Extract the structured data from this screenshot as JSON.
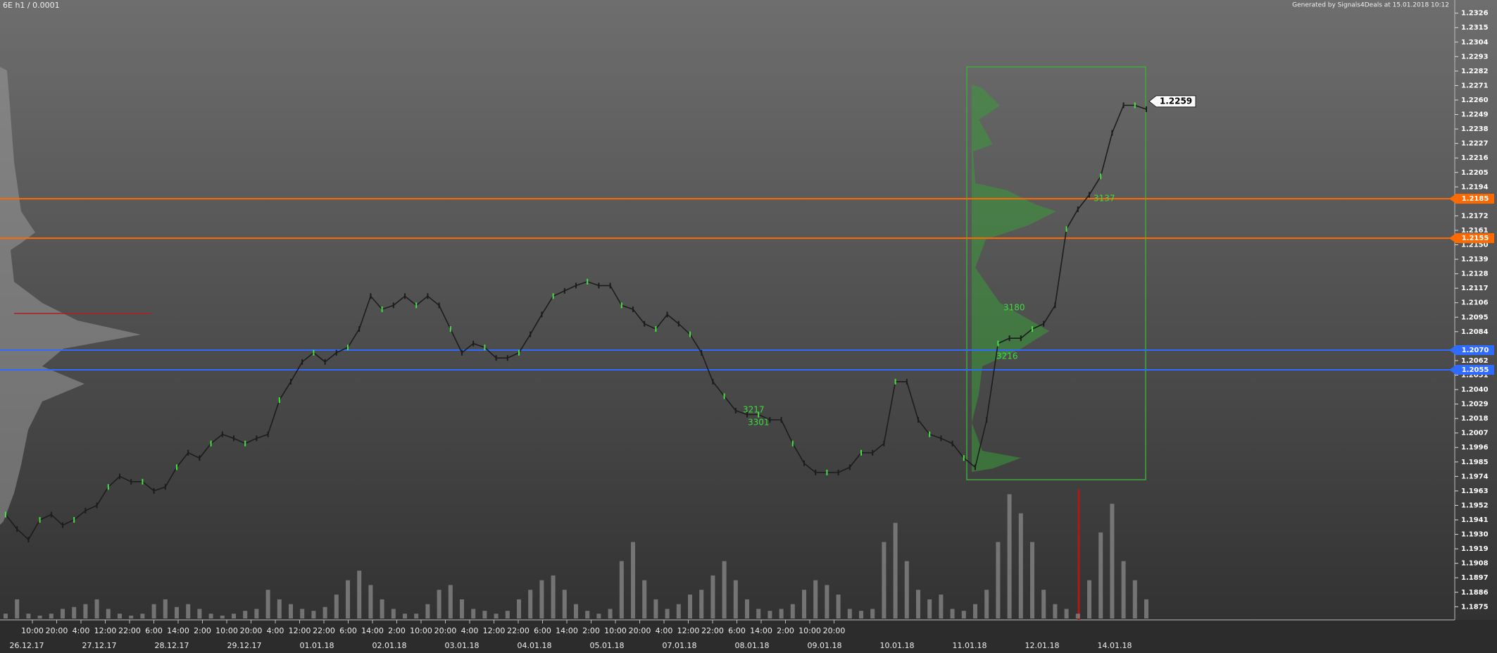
{
  "chart_data": {
    "type": "line",
    "title": "6E h1 / 0.0001",
    "subtitle": "Generated by Signals4Deals at 15.01.2018 10:12",
    "ylim": [
      1.1865,
      1.2336
    ],
    "yticks": [
      1.2326,
      1.2315,
      1.2304,
      1.2293,
      1.2282,
      1.2271,
      {
        "value": 1.226,
        "label": "1.2260"
      },
      1.2249,
      1.2238,
      1.2227,
      1.2216,
      1.2205,
      1.2194,
      1.2172,
      1.2161,
      {
        "value": 1.215,
        "label": "1.2150"
      },
      1.2139,
      1.2128,
      1.2117,
      1.2106,
      1.2095,
      1.2084,
      1.2062,
      1.2051,
      {
        "value": 1.204,
        "label": "1.2040"
      },
      1.2029,
      1.2018,
      1.2007,
      1.1996,
      1.1985,
      1.1974,
      1.1963,
      1.1952,
      1.1941,
      {
        "value": 1.193,
        "label": "1.1930"
      },
      1.1919,
      1.1908,
      1.1897,
      1.1886,
      1.1875
    ],
    "time_labels": [
      "10:00",
      "20:00",
      "4:00",
      "12:00",
      "22:00",
      "6:00",
      "14:00",
      "2:00",
      "10:00",
      "20:00",
      "4:00",
      "12:00",
      "22:00",
      "6:00",
      "14:00",
      "2:00",
      "10:00",
      "20:00",
      "4:00",
      "12:00",
      "22:00",
      "6:00",
      "14:00",
      "2:00",
      "10:00",
      "20:00",
      "4:00",
      "12:00",
      "22:00",
      "6:00",
      "14:00",
      "2:00",
      "10:00",
      "20:00"
    ],
    "date_labels": [
      "26.12.17",
      "27.12.17",
      "28.12.17",
      "29.12.17",
      "01.01.18",
      "02.01.18",
      "03.01.18",
      "04.01.18",
      "05.01.18",
      "07.01.18",
      "08.01.18",
      "09.01.18",
      "10.01.18",
      "11.01.18",
      "12.01.18",
      "14.01.18"
    ],
    "color": "#1c1c1c",
    "values": [
      1.1945,
      1.1934,
      1.1926,
      1.1941,
      1.1945,
      1.1937,
      1.1941,
      1.1948,
      1.1952,
      1.1966,
      1.1974,
      1.197,
      1.197,
      1.1963,
      1.1966,
      1.1981,
      1.1992,
      1.1988,
      1.1999,
      1.2006,
      1.2003,
      1.1999,
      1.2003,
      1.2006,
      1.2032,
      1.2046,
      1.2061,
      1.2068,
      1.2061,
      1.2068,
      1.2072,
      1.2086,
      1.2111,
      1.2101,
      1.2104,
      1.2111,
      1.2104,
      1.2111,
      1.2104,
      1.2086,
      1.2068,
      1.2075,
      1.2072,
      1.2064,
      1.2064,
      1.2068,
      1.2082,
      1.2097,
      1.2111,
      1.2115,
      1.2119,
      1.2122,
      1.2119,
      1.2119,
      1.2104,
      1.2101,
      1.209,
      1.2086,
      1.2097,
      1.209,
      1.2082,
      1.2068,
      1.2046,
      1.2035,
      1.2024,
      1.2021,
      1.2021,
      1.2017,
      1.2017,
      1.1999,
      1.1984,
      1.1977,
      1.1977,
      1.1977,
      1.1981,
      1.1992,
      1.1992,
      1.1999,
      1.2046,
      1.2046,
      1.2017,
      1.2006,
      1.2003,
      1.1999,
      1.1988,
      1.1981,
      1.2017,
      1.2075,
      1.2079,
      1.2079,
      1.2086,
      1.209,
      1.2104,
      1.2162,
      1.2177,
      1.2188,
      1.2202,
      1.2235,
      1.2256,
      1.2256,
      1.2253
    ],
    "volume_color": "#8a8a8a",
    "vlim": [
      0,
      140
    ],
    "volume": [
      5,
      20,
      5,
      3,
      5,
      10,
      12,
      15,
      20,
      10,
      5,
      3,
      5,
      15,
      20,
      12,
      15,
      10,
      5,
      3,
      5,
      8,
      10,
      30,
      20,
      15,
      10,
      8,
      12,
      25,
      40,
      50,
      35,
      20,
      10,
      5,
      5,
      15,
      30,
      35,
      20,
      10,
      8,
      5,
      8,
      20,
      30,
      40,
      45,
      30,
      15,
      8,
      5,
      10,
      60,
      80,
      40,
      20,
      10,
      15,
      25,
      30,
      45,
      60,
      40,
      20,
      10,
      8,
      10,
      15,
      30,
      40,
      35,
      25,
      10,
      8,
      10,
      80,
      100,
      60,
      30,
      20,
      25,
      10,
      8,
      15,
      30,
      80,
      130,
      110,
      80,
      30,
      15,
      10,
      5,
      40,
      90,
      120,
      60,
      40,
      20
    ],
    "levels": [
      1.2185,
      1.2155,
      {
        "value": 1.207,
        "label": "1.2070"
      },
      1.2055
    ],
    "level_colors": [
      "#ff6a00",
      "#ff6a00",
      "#2f6bff",
      "#2f6bff"
    ],
    "last_price": 1.2259,
    "annotations": [
      "3180",
      "3216",
      "3217",
      "3301",
      "3137"
    ],
    "annotation_color": "#3ddc3d"
  }
}
